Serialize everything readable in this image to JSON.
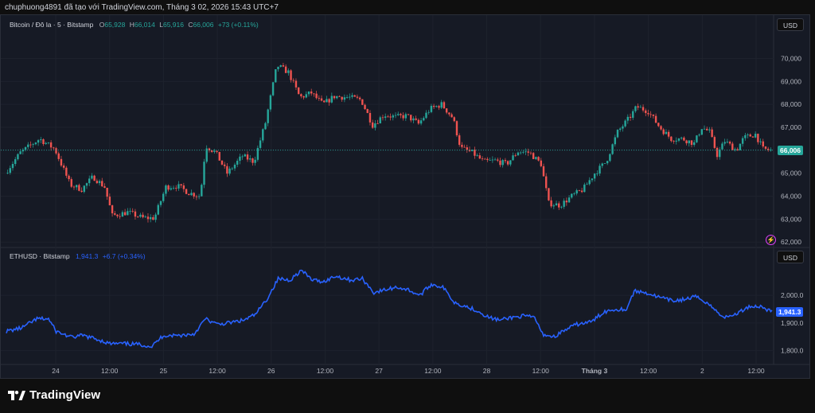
{
  "header": {
    "caption": "chuphuong4891 đã tạo với TradingView.com, Tháng 3 02, 2026 15:43 UTC+7"
  },
  "colors": {
    "up": "#26a69a",
    "down": "#ef5350",
    "eth_line": "#2962ff",
    "background": "#161a25",
    "grid": "#1e222d",
    "price_line": "#26a69a",
    "bolt": "#e040fb"
  },
  "pane_btc": {
    "symbol": "Bitcoin / Đô la · 5 · Bitstamp",
    "o_label": "O",
    "o_value": "65,928",
    "h_label": "H",
    "h_value": "66,014",
    "l_label": "L",
    "l_value": "65,916",
    "c_label": "C",
    "c_value": "66,006",
    "change": "+73 (+0.11%)",
    "currency_button": "USD",
    "last_price_tag": "66,006",
    "alert_icon": "lightning-icon"
  },
  "pane_eth": {
    "symbol": "ETHUSD · Bitstamp",
    "last": "1,941.3",
    "change": "+6.7 (+0.34%)",
    "currency_button": "USD",
    "last_price_tag": "1,941.3"
  },
  "chart_data": [
    {
      "type": "candlestick",
      "title": "Bitcoin / Đô la · 5 · Bitstamp",
      "y_ticks": [
        "62,000",
        "63,000",
        "64,000",
        "65,000",
        "66,000",
        "67,000",
        "68,000",
        "69,000",
        "70,000"
      ],
      "ylim": [
        61800,
        71300
      ],
      "grid": true,
      "last_price": 66006,
      "series": [
        {
          "name": "BTCUSD",
          "close_path": [
            [
              0,
              65000
            ],
            [
              0.02,
              65900
            ],
            [
              0.045,
              66500
            ],
            [
              0.065,
              66050
            ],
            [
              0.085,
              64500
            ],
            [
              0.1,
              64300
            ],
            [
              0.115,
              64850
            ],
            [
              0.13,
              64400
            ],
            [
              0.14,
              63150
            ],
            [
              0.16,
              63300
            ],
            [
              0.18,
              63050
            ],
            [
              0.195,
              63050
            ],
            [
              0.21,
              64400
            ],
            [
              0.225,
              64450
            ],
            [
              0.24,
              64150
            ],
            [
              0.255,
              64000
            ],
            [
              0.262,
              66200
            ],
            [
              0.275,
              65900
            ],
            [
              0.29,
              65000
            ],
            [
              0.31,
              65750
            ],
            [
              0.325,
              65500
            ],
            [
              0.34,
              67200
            ],
            [
              0.355,
              69700
            ],
            [
              0.37,
              69400
            ],
            [
              0.385,
              68300
            ],
            [
              0.4,
              68500
            ],
            [
              0.415,
              68000
            ],
            [
              0.43,
              68350
            ],
            [
              0.45,
              68300
            ],
            [
              0.465,
              68200
            ],
            [
              0.48,
              67100
            ],
            [
              0.495,
              67550
            ],
            [
              0.51,
              67450
            ],
            [
              0.525,
              67500
            ],
            [
              0.54,
              67150
            ],
            [
              0.555,
              67800
            ],
            [
              0.57,
              68000
            ],
            [
              0.585,
              67400
            ],
            [
              0.595,
              66100
            ],
            [
              0.61,
              65900
            ],
            [
              0.625,
              65500
            ],
            [
              0.64,
              65550
            ],
            [
              0.655,
              65400
            ],
            [
              0.67,
              65950
            ],
            [
              0.685,
              65900
            ],
            [
              0.7,
              65400
            ],
            [
              0.71,
              63700
            ],
            [
              0.725,
              63600
            ],
            [
              0.74,
              64000
            ],
            [
              0.755,
              64300
            ],
            [
              0.77,
              65000
            ],
            [
              0.785,
              65500
            ],
            [
              0.8,
              66800
            ],
            [
              0.815,
              67400
            ],
            [
              0.825,
              67900
            ],
            [
              0.84,
              67700
            ],
            [
              0.855,
              67000
            ],
            [
              0.87,
              66500
            ],
            [
              0.885,
              66500
            ],
            [
              0.9,
              66300
            ],
            [
              0.91,
              67000
            ],
            [
              0.92,
              66800
            ],
            [
              0.93,
              65800
            ],
            [
              0.94,
              66400
            ],
            [
              0.955,
              66000
            ],
            [
              0.965,
              66550
            ],
            [
              0.98,
              66700
            ],
            [
              0.99,
              66050
            ],
            [
              1,
              66006
            ]
          ]
        }
      ]
    },
    {
      "type": "line",
      "title": "ETHUSD · Bitstamp",
      "y_ticks": [
        "1,800.0",
        "1,900.0",
        "2,000.0"
      ],
      "ylim": [
        1750,
        2130
      ],
      "grid": true,
      "last_price": 1941.3,
      "x_ticks": [
        "24",
        "12:00",
        "25",
        "12:00",
        "26",
        "12:00",
        "27",
        "12:00",
        "28",
        "12:00",
        "Tháng 3",
        "12:00",
        "2",
        "12:00"
      ],
      "series": [
        {
          "name": "ETHUSD",
          "values_path": [
            [
              0,
              1870
            ],
            [
              0.02,
              1882
            ],
            [
              0.04,
              1915
            ],
            [
              0.055,
              1915
            ],
            [
              0.065,
              1870
            ],
            [
              0.085,
              1848
            ],
            [
              0.1,
              1855
            ],
            [
              0.12,
              1840
            ],
            [
              0.135,
              1825
            ],
            [
              0.155,
              1825
            ],
            [
              0.175,
              1822
            ],
            [
              0.19,
              1815
            ],
            [
              0.205,
              1855
            ],
            [
              0.225,
              1855
            ],
            [
              0.245,
              1860
            ],
            [
              0.26,
              1915
            ],
            [
              0.275,
              1895
            ],
            [
              0.29,
              1900
            ],
            [
              0.31,
              1910
            ],
            [
              0.325,
              1930
            ],
            [
              0.34,
              1985
            ],
            [
              0.355,
              2060
            ],
            [
              0.37,
              2055
            ],
            [
              0.385,
              2090
            ],
            [
              0.4,
              2055
            ],
            [
              0.415,
              2050
            ],
            [
              0.43,
              2070
            ],
            [
              0.45,
              2055
            ],
            [
              0.465,
              2060
            ],
            [
              0.48,
              2010
            ],
            [
              0.495,
              2020
            ],
            [
              0.51,
              2030
            ],
            [
              0.525,
              2020
            ],
            [
              0.54,
              2000
            ],
            [
              0.555,
              2040
            ],
            [
              0.57,
              2030
            ],
            [
              0.585,
              1975
            ],
            [
              0.6,
              1960
            ],
            [
              0.615,
              1945
            ],
            [
              0.63,
              1920
            ],
            [
              0.645,
              1910
            ],
            [
              0.66,
              1920
            ],
            [
              0.675,
              1925
            ],
            [
              0.69,
              1920
            ],
            [
              0.7,
              1860
            ],
            [
              0.715,
              1850
            ],
            [
              0.73,
              1875
            ],
            [
              0.745,
              1895
            ],
            [
              0.765,
              1905
            ],
            [
              0.78,
              1940
            ],
            [
              0.795,
              1950
            ],
            [
              0.81,
              1950
            ],
            [
              0.82,
              2015
            ],
            [
              0.835,
              2010
            ],
            [
              0.85,
              1995
            ],
            [
              0.87,
              1980
            ],
            [
              0.885,
              1985
            ],
            [
              0.9,
              1995
            ],
            [
              0.915,
              1975
            ],
            [
              0.93,
              1935
            ],
            [
              0.94,
              1920
            ],
            [
              0.955,
              1935
            ],
            [
              0.97,
              1960
            ],
            [
              0.985,
              1960
            ],
            [
              1,
              1941
            ]
          ]
        }
      ]
    }
  ],
  "branding": {
    "logo_text": "TradingView"
  }
}
